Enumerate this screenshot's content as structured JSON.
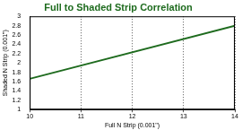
{
  "chart_data": {
    "type": "line",
    "title": "Full to Shaded Strip Correlation",
    "x_label": "Full N Strip (0.001\")",
    "y_label": "Shaded N Strip (0.001\")",
    "x": [
      10,
      14
    ],
    "values": [
      1.66,
      2.8
    ],
    "color": "#1e6b1e",
    "xlim": [
      10,
      14
    ],
    "xticks": [
      10,
      11,
      12,
      13,
      14
    ],
    "ylim": [
      1,
      3
    ],
    "yticks": [
      1,
      1.2,
      1.4,
      1.6,
      1.8,
      2,
      2.2,
      2.4,
      2.6,
      2.8,
      3
    ],
    "grid": true
  }
}
